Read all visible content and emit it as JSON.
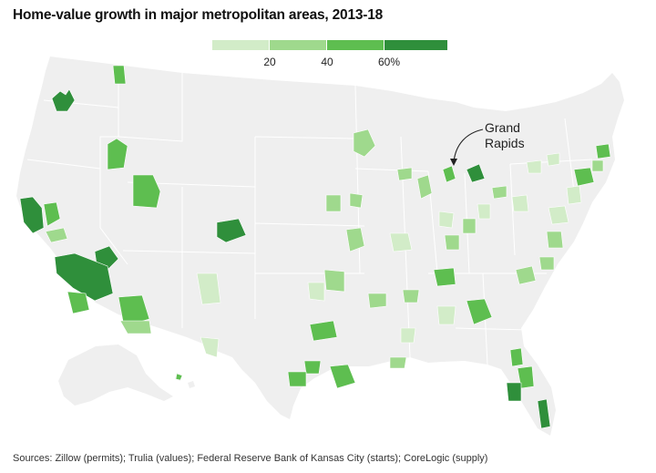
{
  "title": "Home-value growth in major metropolitan areas, 2013-18",
  "legend": {
    "ticks": [
      "20",
      "40",
      "60%"
    ],
    "bins": [
      {
        "range": [
          0,
          20
        ],
        "color": "#d2ecc8"
      },
      {
        "range": [
          20,
          40
        ],
        "color": "#9fd98d"
      },
      {
        "range": [
          40,
          60
        ],
        "color": "#5ebe50"
      },
      {
        "range": [
          60,
          80
        ],
        "color": "#2f8f3b"
      }
    ]
  },
  "map": {
    "land_color": "#efefef",
    "state_border_color": "#ffffff",
    "callout_lines": [
      "Grand",
      "Rapids"
    ]
  },
  "source": "Sources: Zillow (permits); Trulia (values); Federal Reserve Bank of Kansas City (starts); CoreLogic (supply)"
}
